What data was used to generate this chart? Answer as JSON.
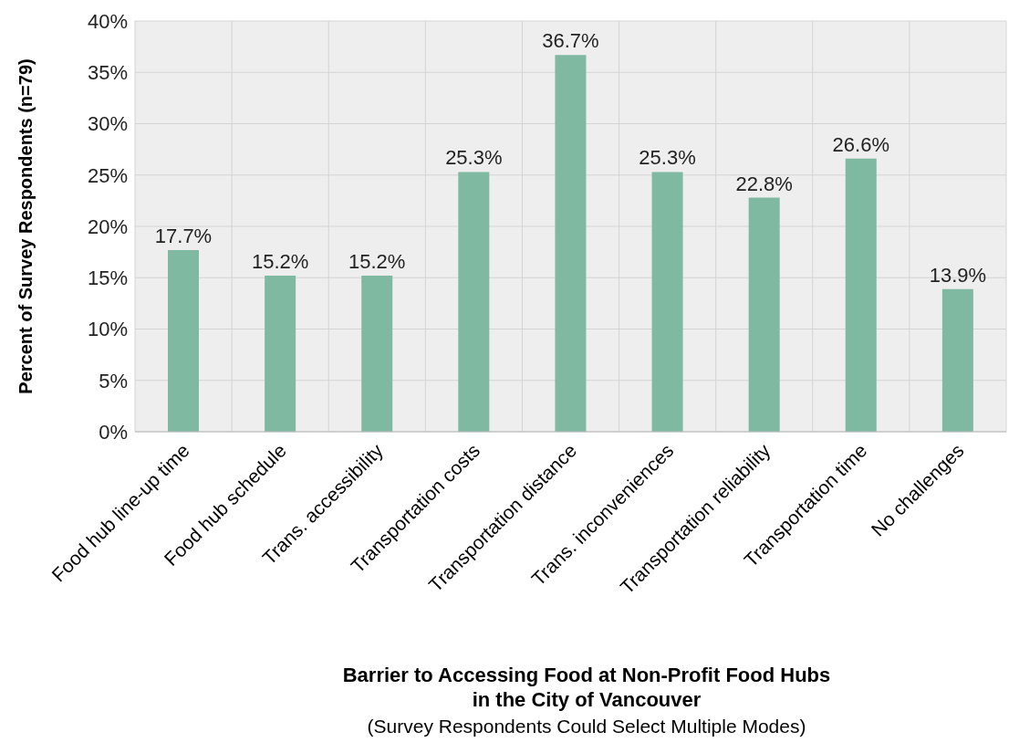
{
  "chart_data": {
    "type": "bar",
    "categories": [
      "Food hub line-up time",
      "Food hub schedule",
      "Trans. accessibility",
      "Transportation costs",
      "Transportation distance",
      "Trans. inconveniences",
      "Transportation reliability",
      "Transportation time",
      "No challenges"
    ],
    "values": [
      17.7,
      15.2,
      15.2,
      25.3,
      36.7,
      25.3,
      22.8,
      26.6,
      13.9
    ],
    "value_labels": [
      "17.7%",
      "15.2%",
      "15.2%",
      "25.3%",
      "36.7%",
      "25.3%",
      "22.8%",
      "26.6%",
      "13.9%"
    ],
    "color": "#7fb9a2",
    "ylim": [
      0,
      40
    ],
    "yticks": [
      {
        "value": 0,
        "label": "0%"
      },
      {
        "value": 5,
        "label": "5%"
      },
      {
        "value": 10,
        "label": "10%"
      },
      {
        "value": 15,
        "label": "15%"
      },
      {
        "value": 20,
        "label": "20%"
      },
      {
        "value": 25,
        "label": "25%"
      },
      {
        "value": 30,
        "label": "30%"
      },
      {
        "value": 35,
        "label": "35%"
      },
      {
        "value": 40,
        "label": "40%"
      }
    ],
    "ylabel": "Percent of Survey Respondents (n=79)",
    "xlabel": "Barrier to Accessing Food at Non-Profit Food Hubs\nin the City of Vancouver",
    "annotations": [
      "(Survey Respondents Could Select Multiple Modes)"
    ],
    "grid": true,
    "legend": false
  }
}
